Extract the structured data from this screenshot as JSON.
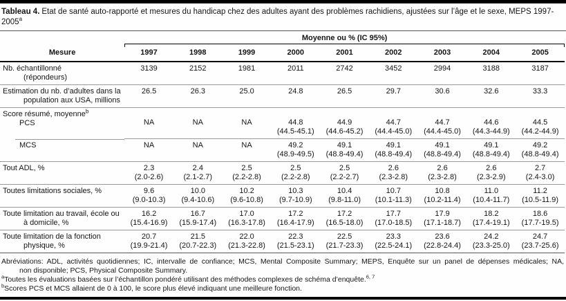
{
  "title": {
    "label": "Tableau 4.",
    "text": "Etat de santé auto-rapporté et mesures du handicap chez des adultes ayant des problèmes rachidiens, ajustées sur l’âge et le sexe, MEPS 1997-2005",
    "footnote_marker": "a"
  },
  "table": {
    "measure_header": "Mesure",
    "spanner": "Moyenne ou % (IC 95%)",
    "years": [
      "1997",
      "1998",
      "1999",
      "2000",
      "2001",
      "2002",
      "2003",
      "2004",
      "2005"
    ],
    "rows": [
      {
        "label": [
          "Nb. échantillonné",
          "(répondeurs)"
        ],
        "values": [
          {
            "v": "3139"
          },
          {
            "v": "2152"
          },
          {
            "v": "1981"
          },
          {
            "v": "2011"
          },
          {
            "v": "2742"
          },
          {
            "v": "3452"
          },
          {
            "v": "2994"
          },
          {
            "v": "3188"
          },
          {
            "v": "3187"
          }
        ]
      },
      {
        "label": [
          "Estimation du nb. d’adultes dans la",
          "population aux USA, millions"
        ],
        "values": [
          {
            "v": "26.5"
          },
          {
            "v": "26.3"
          },
          {
            "v": "25.0"
          },
          {
            "v": "24.8"
          },
          {
            "v": "26.5"
          },
          {
            "v": "29.7"
          },
          {
            "v": "30.6"
          },
          {
            "v": "32.6"
          },
          {
            "v": "33.3"
          }
        ]
      },
      {
        "section": "Score résumé, moyenne",
        "section_sup": "b",
        "label": [
          "PCS"
        ],
        "sub": true,
        "offset": true,
        "values": [
          {
            "v": "NA"
          },
          {
            "v": "NA"
          },
          {
            "v": "NA"
          },
          {
            "v": "44.8",
            "ci": "(44.5-45.1)"
          },
          {
            "v": "44.9",
            "ci": "(44.6-45.2)"
          },
          {
            "v": "44.7",
            "ci": "(44.4-45.0)"
          },
          {
            "v": "44.7",
            "ci": "(44.4-45.0)"
          },
          {
            "v": "44.6",
            "ci": "(44.3-44.9)"
          },
          {
            "v": "44.5",
            "ci": "(44.2-44.9)"
          }
        ]
      },
      {
        "label": [
          "MCS"
        ],
        "sub": true,
        "partial_rule": true,
        "values": [
          {
            "v": "NA"
          },
          {
            "v": "NA"
          },
          {
            "v": "NA"
          },
          {
            "v": "49.2",
            "ci": "(48.9-49.5)"
          },
          {
            "v": "49.1",
            "ci": "(48.8-49.4)"
          },
          {
            "v": "49.1",
            "ci": "(48.8-49.4)"
          },
          {
            "v": "49.1",
            "ci": "(48.8-49.4)"
          },
          {
            "v": "49.1",
            "ci": "(48.8-49.4)"
          },
          {
            "v": "49.2",
            "ci": "(48.8-49.4)"
          }
        ]
      },
      {
        "label": [
          "Tout ADL, %"
        ],
        "values": [
          {
            "v": "2.3",
            "ci": "(2.0-2.6)"
          },
          {
            "v": "2.4",
            "ci": "(2.1-2.7)"
          },
          {
            "v": "2.5",
            "ci": "(2.2-2.8)"
          },
          {
            "v": "2.5",
            "ci": "(2.2-2.8)"
          },
          {
            "v": "2.5",
            "ci": "(2.2-2.7)"
          },
          {
            "v": "2.6",
            "ci": "(2.3-2.8)"
          },
          {
            "v": "2.6",
            "ci": "(2.3-2.8)"
          },
          {
            "v": "2.6",
            "ci": "(2.3-2.9)"
          },
          {
            "v": "2.7",
            "ci": "(2.4-3.0)"
          }
        ]
      },
      {
        "label": [
          "Toutes limitations sociales, %"
        ],
        "values": [
          {
            "v": "9.6",
            "ci": "(9.0-10.3)"
          },
          {
            "v": "10.0",
            "ci": "(9.4-10.6)"
          },
          {
            "v": "10.2",
            "ci": "(9.6-10.8)"
          },
          {
            "v": "10.3",
            "ci": "(9.7-10.9)"
          },
          {
            "v": "10.4",
            "ci": "(9.8-11.0)"
          },
          {
            "v": "10.7",
            "ci": "(10.1-11.3)"
          },
          {
            "v": "10.8",
            "ci": "(10.2-11.4)"
          },
          {
            "v": "11.0",
            "ci": "(10.4-11.7)"
          },
          {
            "v": "11.2",
            "ci": "(10.5-11.9)"
          }
        ]
      },
      {
        "label": [
          "Toute limitation au travail, école ou",
          "à domicile, %"
        ],
        "values": [
          {
            "v": "16.2",
            "ci": "(15.4-16.9)"
          },
          {
            "v": "16.7",
            "ci": "(15.9-17.4)"
          },
          {
            "v": "17.0",
            "ci": "(16.3-17.8)"
          },
          {
            "v": "17.2",
            "ci": "(16.4-17.9)"
          },
          {
            "v": "17.2",
            "ci": "(16.5-18.0)"
          },
          {
            "v": "17.7",
            "ci": "(17.0-18.5)"
          },
          {
            "v": "17.9",
            "ci": "(17.1-18.7)"
          },
          {
            "v": "18.2",
            "ci": "(17.4-19.1)"
          },
          {
            "v": "18.6",
            "ci": "(17.7-19.5)"
          }
        ]
      },
      {
        "label": [
          "Toute limitation de la fonction",
          "physique, %"
        ],
        "values": [
          {
            "v": "20.7",
            "ci": "(19.9-21.4)"
          },
          {
            "v": "21.5",
            "ci": "(20.7-22.3)"
          },
          {
            "v": "22.0",
            "ci": "(21.3-22.8)"
          },
          {
            "v": "22.3",
            "ci": "(21.5-23.1)"
          },
          {
            "v": "22.5",
            "ci": "(21.7-23.3)"
          },
          {
            "v": "23.3",
            "ci": "(22.5-24.1)"
          },
          {
            "v": "23.6",
            "ci": "(22.8-24.4)"
          },
          {
            "v": "24.2",
            "ci": "(23.3-25.0)"
          },
          {
            "v": "24.7",
            "ci": "(23.7-25.6)"
          }
        ]
      }
    ]
  },
  "footnotes": {
    "abbreviations_line1": "Abréviations: ADL, activités quotidiennes; IC, intervalle de confiance; MCS, Mental Composite Summary; MEPS, Enquête sur un panel de dépenses médicales; NA,",
    "abbreviations_line2": "non disponible; PCS, Physical Composite Summary.",
    "a": {
      "marker": "a",
      "text": "Toutes les évaluations basées sur l’échantillon pondéré utilisant des méthodes complexes de schéma d’enquête.",
      "refs": "6, 7"
    },
    "b": {
      "marker": "b",
      "text": "Scores PCS et MCS allaient de 0 à 100, le score plus élevé indiquant une meilleure fonction."
    }
  },
  "colors": {
    "rule_black": "#000000",
    "rule_gray": "#999999",
    "text": "#141414"
  }
}
